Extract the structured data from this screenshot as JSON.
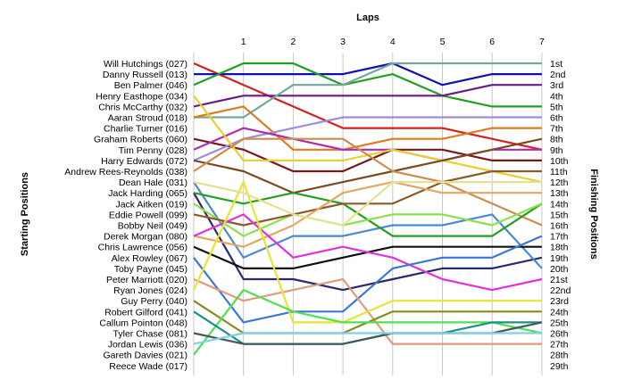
{
  "chart_data": {
    "type": "line",
    "title": "",
    "xlabel": "Laps",
    "ylabel_left": "Starting Positions",
    "ylabel_right": "Finishing Positions",
    "x": [
      0,
      1,
      2,
      3,
      4,
      5,
      6,
      7
    ],
    "x_ticks": [
      "1",
      "2",
      "3",
      "4",
      "5",
      "6",
      "7"
    ],
    "ylim": [
      1,
      29
    ],
    "y_reversed": true,
    "grid": "vertical",
    "starting_labels": [
      "Will Hutchings (027)",
      "Danny Russell (013)",
      "Ben Palmer (046)",
      "Henry Easthope (034)",
      "Chris McCarthy (032)",
      "Aaran Stroud (018)",
      "Charlie Turner (016)",
      "Graham Roberts (060)",
      "Tim Penny (028)",
      "Harry Edwards (072)",
      "Andrew Rees-Reynolds (038)",
      "Dean Hale (031)",
      "Jack Harding (065)",
      "Jack Aitken (019)",
      "Eddie Powell (099)",
      "Bobby Neil (049)",
      "Derek Morgan (080)",
      "Chris Lawrence (056)",
      "Alex Rowley (067)",
      "Toby Payne (045)",
      "Peter Marriott (020)",
      "Ryan Jones (024)",
      "Guy Perry (040)",
      "Robert Gilford (041)",
      "Callum Pointon (048)",
      "Tyler Chase (081)",
      "Jordan Lewis (036)",
      "Gareth Davies (021)",
      "Reece Wade (017)"
    ],
    "finishing_labels": [
      "1st",
      "2nd",
      "3rd",
      "4th",
      "5th",
      "6th",
      "7th",
      "8th",
      "9th",
      "10th",
      "11th",
      "12th",
      "13th",
      "14th",
      "15th",
      "16th",
      "17th",
      "18th",
      "19th",
      "20th",
      "21st",
      "22nd",
      "23rd",
      "24th",
      "25th",
      "26th",
      "27th",
      "28th",
      "29th"
    ],
    "series": [
      {
        "color": "#d42020",
        "positions": [
          1,
          3,
          5,
          7,
          7,
          7,
          8,
          9
        ]
      },
      {
        "color": "#1010b0",
        "positions": [
          2,
          2,
          2,
          2,
          1,
          3,
          2,
          2
        ]
      },
      {
        "color": "#20a020",
        "positions": [
          3,
          1,
          1,
          3,
          2,
          4,
          5,
          5
        ]
      },
      {
        "color": "#6a1a86",
        "positions": [
          5,
          4,
          4,
          4,
          4,
          4,
          3,
          3
        ]
      },
      {
        "color": "#70a8a0",
        "positions": [
          6,
          6,
          3,
          3,
          1,
          1,
          1,
          1
        ]
      },
      {
        "color": "#e07a1a",
        "positions": [
          6,
          5,
          9,
          9,
          8,
          8,
          7,
          7
        ]
      },
      {
        "color": "#7a1818",
        "positions": [
          8,
          9,
          11,
          11,
          9,
          9,
          10,
          10
        ]
      },
      {
        "color": "#9a8ee0",
        "positions": [
          10,
          8,
          7,
          6,
          6,
          6,
          6,
          6
        ]
      },
      {
        "color": "#b02ab0",
        "positions": [
          9,
          7,
          8,
          9,
          9,
          10,
          9,
          9
        ]
      },
      {
        "color": "#e8d030",
        "positions": [
          4,
          10,
          10,
          10,
          9,
          10,
          11,
          12
        ]
      },
      {
        "color": "#7a4a20",
        "positions": [
          10,
          11,
          13,
          12,
          11,
          10,
          9,
          8
        ]
      },
      {
        "color": "#d08a4a",
        "positions": [
          11,
          8,
          8,
          8,
          11,
          12,
          14,
          16
        ]
      },
      {
        "color": "#2a2a70",
        "positions": [
          13,
          21,
          21,
          22,
          21,
          20,
          20,
          19
        ]
      },
      {
        "color": "#4a8ad0",
        "positions": [
          12,
          19,
          17,
          17,
          16,
          16,
          15,
          20
        ]
      },
      {
        "color": "#22a022",
        "positions": [
          13,
          14,
          13,
          14,
          17,
          17,
          17,
          14
        ]
      },
      {
        "color": "#8ae24a",
        "positions": [
          14,
          17,
          15,
          16,
          15,
          15,
          16,
          14
        ]
      },
      {
        "color": "#8a5a2a",
        "positions": [
          15,
          16,
          15,
          14,
          14,
          12,
          11,
          11
        ]
      },
      {
        "color": "#e0a860",
        "positions": [
          17,
          18,
          16,
          13,
          12,
          13,
          13,
          13
        ]
      },
      {
        "color": "#101010",
        "positions": [
          18,
          20,
          20,
          19,
          18,
          18,
          18,
          18
        ]
      },
      {
        "color": "#e030e0",
        "positions": [
          17,
          15,
          19,
          18,
          19,
          21,
          22,
          21
        ]
      },
      {
        "color": "#3a78d8",
        "positions": [
          19,
          25,
          24,
          24,
          20,
          19,
          19,
          17
        ]
      },
      {
        "color": "#e09a80",
        "positions": [
          21,
          23,
          22,
          21,
          27,
          27,
          27,
          27
        ]
      },
      {
        "color": "#e6e630",
        "positions": [
          22,
          12,
          25,
          25,
          23,
          23,
          23,
          23
        ]
      },
      {
        "color": "#8a8a20",
        "positions": [
          23,
          26,
          26,
          26,
          24,
          24,
          24,
          24
        ]
      },
      {
        "color": "#50e050",
        "positions": [
          28,
          22,
          24,
          25,
          25,
          25,
          25,
          26
        ]
      },
      {
        "color": "#1a9090",
        "positions": [
          24,
          27,
          27,
          27,
          26,
          26,
          25,
          25
        ]
      },
      {
        "color": "#e6e090",
        "positions": [
          12,
          13,
          15,
          16,
          12,
          12,
          12,
          12
        ]
      },
      {
        "color": "#405a60",
        "positions": [
          26,
          27,
          27,
          27,
          26,
          26,
          26,
          25
        ]
      },
      {
        "color": "#80d0e8",
        "positions": [
          27,
          26,
          26,
          26,
          26,
          26,
          26,
          26
        ]
      }
    ]
  }
}
